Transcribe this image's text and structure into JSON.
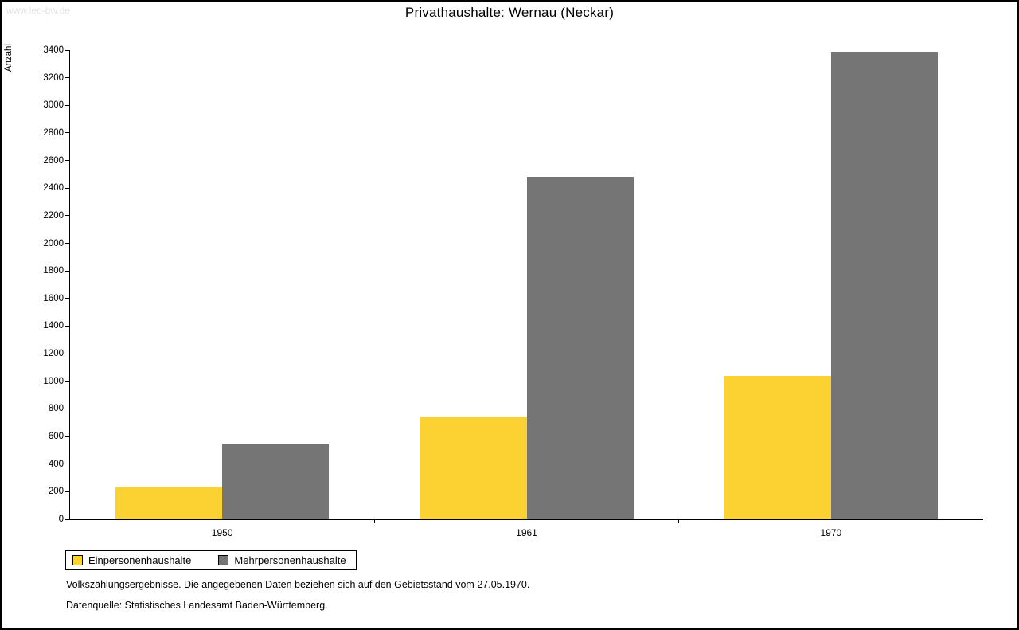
{
  "watermark": "www.leo-bw.de",
  "title": "Privathaushalte: Wernau (Neckar)",
  "footnotes": {
    "line1": "Volkszählungsergebnisse. Die angegebenen Daten beziehen sich auf den Gebietsstand vom 27.05.1970.",
    "line2": "Datenquelle: Statistisches Landesamt Baden-Württemberg."
  },
  "chart_data": {
    "type": "bar",
    "title": "Privathaushalte: Wernau (Neckar)",
    "xlabel": "",
    "ylabel": "Anzahl",
    "categories": [
      "1950",
      "1961",
      "1970"
    ],
    "series": [
      {
        "name": "Einpersonenhaushalte",
        "color": "#fbd232",
        "values": [
          230,
          740,
          1040
        ]
      },
      {
        "name": "Mehrpersonenhaushalte",
        "color": "#757575",
        "values": [
          545,
          2480,
          3390
        ]
      }
    ],
    "ylim": [
      0,
      3400
    ],
    "ytick_step": 200,
    "grid": false,
    "legend_position": "bottom-left"
  }
}
